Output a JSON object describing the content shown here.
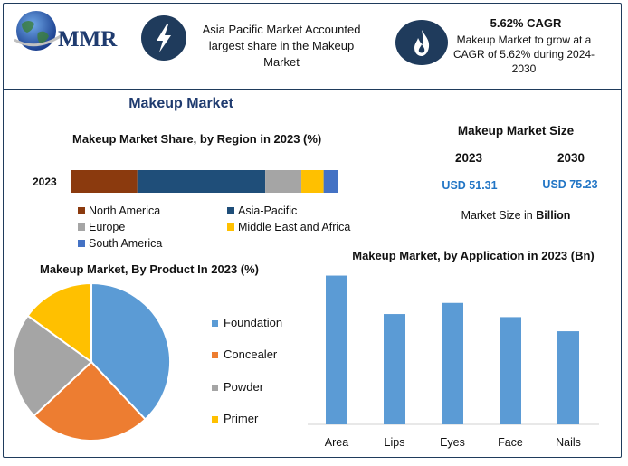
{
  "header": {
    "logo_text": "MMR",
    "fact1": "Asia Pacific Market Accounted largest share in the Makeup Market",
    "fact2_title": "5.62% CAGR",
    "fact2_body": "Makeup Market to grow at a CAGR of 5.62% during 2024-2030"
  },
  "main_title": "Makeup Market",
  "market_size": {
    "title": "Makeup Market Size",
    "year1": "2023",
    "year2": "2030",
    "value1": "USD 51.31",
    "value2": "USD 75.23",
    "note_prefix": "Market Size in ",
    "note_unit": "Billion"
  },
  "colors": {
    "frame": "#1f3b5c",
    "icon_bg": "#1f3b5c",
    "value_text": "#2175c5"
  },
  "icons": [
    "globe-logo",
    "lightning-icon",
    "flame-icon"
  ],
  "chart_data": [
    {
      "type": "bar",
      "orientation": "horizontal-stacked",
      "title": "Makeup Market Share, by Region in 2023 (%)",
      "categories": [
        "2023"
      ],
      "series": [
        {
          "name": "North America",
          "values": [
            24
          ],
          "color": "#8b3a0e"
        },
        {
          "name": "Asia-Pacific",
          "values": [
            46
          ],
          "color": "#1f4e79"
        },
        {
          "name": "Europe",
          "values": [
            13
          ],
          "color": "#a5a5a5"
        },
        {
          "name": "Middle East and Africa",
          "values": [
            8
          ],
          "color": "#ffc000"
        },
        {
          "name": "South America",
          "values": [
            5
          ],
          "color": "#4472c4"
        }
      ],
      "legend_position": "bottom"
    },
    {
      "type": "pie",
      "title": "Makeup Market, By Product In 2023 (%)",
      "labels": [
        "Foundation",
        "Concealer",
        "Powder",
        "Primer"
      ],
      "values": [
        38,
        25,
        22,
        15
      ],
      "colors": [
        "#5b9bd5",
        "#ed7d31",
        "#a5a5a5",
        "#ffc000"
      ],
      "legend_position": "right"
    },
    {
      "type": "bar",
      "title": "Makeup Market, by Application in 2023 (Bn)",
      "categories": [
        "Area",
        "Lips",
        "Eyes",
        "Face",
        "Nails"
      ],
      "values": [
        147,
        109,
        120,
        106,
        92
      ],
      "color": "#5b9bd5",
      "ylim": [
        0,
        160
      ],
      "grid": false
    }
  ]
}
